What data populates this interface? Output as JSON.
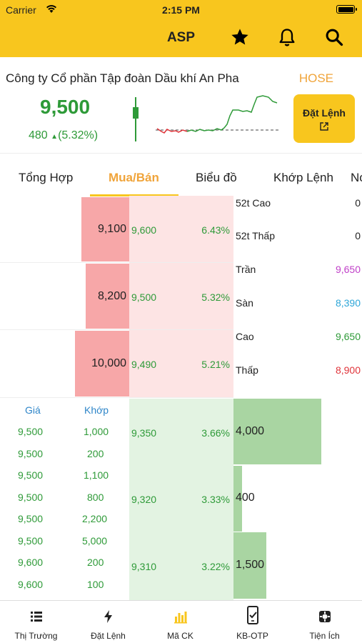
{
  "status": {
    "carrier": "Carrier",
    "time": "2:15 PM"
  },
  "nav": {
    "title": "ASP"
  },
  "stock": {
    "company": "Công ty Cổ phần Tập đoàn Dầu khí An Pha",
    "exchange": "HOSE",
    "price": "9,500",
    "change": "480",
    "change_pct": "(5.32%)",
    "order_label": "Đặt Lệnh"
  },
  "tabs": [
    {
      "label": "Tổng Hợp",
      "active": false
    },
    {
      "label": "Mua/Bán",
      "active": true
    },
    {
      "label": "Biểu đồ",
      "active": false
    },
    {
      "label": "Khớp Lệnh",
      "active": false
    },
    {
      "label": "Nó",
      "active": false
    }
  ],
  "sell_orders": [
    {
      "qty": "9,100",
      "price": "9,600",
      "pct": "6.43%",
      "qty_fraction": 0.58
    },
    {
      "qty": "8,200",
      "price": "9,500",
      "pct": "5.32%",
      "qty_fraction": 0.53
    },
    {
      "qty": "10,000",
      "price": "9,490",
      "pct": "5.21%",
      "qty_fraction": 0.66
    }
  ],
  "buy_orders": [
    {
      "price": "9,350",
      "pct": "3.66%",
      "qty": "4,000",
      "qty_fraction": 1.0
    },
    {
      "price": "9,320",
      "pct": "3.33%",
      "qty": "400",
      "qty_fraction": 0.1
    },
    {
      "price": "9,310",
      "pct": "3.22%",
      "qty": "1,500",
      "qty_fraction": 0.375
    }
  ],
  "info": [
    {
      "label": "52t Cao",
      "value": "0",
      "color": "#222222"
    },
    {
      "label": "52t Thấp",
      "value": "0",
      "color": "#222222"
    },
    {
      "label": "Trần",
      "value": "9,650",
      "color": "#c040c8"
    },
    {
      "label": "Sàn",
      "value": "8,390",
      "color": "#2ea6d8"
    },
    {
      "label": "Cao",
      "value": "9,650",
      "color": "#2e9a38"
    },
    {
      "label": "Thấp",
      "value": "8,900",
      "color": "#e0343a"
    }
  ],
  "matches": {
    "headers": {
      "price": "Giá",
      "volume": "Khớp"
    },
    "rows": [
      {
        "price": "9,500",
        "volume": "1,000"
      },
      {
        "price": "9,500",
        "volume": "200"
      },
      {
        "price": "9,500",
        "volume": "1,100"
      },
      {
        "price": "9,500",
        "volume": "800"
      },
      {
        "price": "9,500",
        "volume": "2,200"
      },
      {
        "price": "9,500",
        "volume": "5,000"
      },
      {
        "price": "9,600",
        "volume": "200"
      },
      {
        "price": "9,600",
        "volume": "100"
      }
    ]
  },
  "tabbar": [
    {
      "label": "Thị Trường",
      "icon": "list-icon"
    },
    {
      "label": "Đặt Lệnh",
      "icon": "lightning-icon"
    },
    {
      "label": "Mã CK",
      "icon": "bar-chart-icon"
    },
    {
      "label": "KB-OTP",
      "icon": "phone-check-icon"
    },
    {
      "label": "Tiện Ích",
      "icon": "widget-icon"
    }
  ],
  "colors": {
    "brand": "#f8c61e",
    "up": "#2e9a38",
    "down": "#e0343a",
    "exchange": "#f0a43a",
    "tab_active": "#f0a43a"
  }
}
